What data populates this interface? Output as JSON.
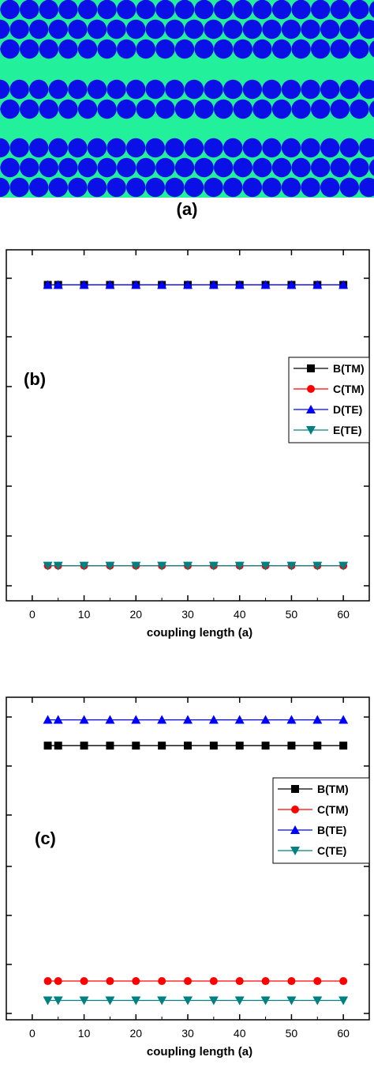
{
  "panel_a": {
    "label": "(a)",
    "colors": {
      "background": "#22f09a",
      "rods": "#0a10e6"
    }
  },
  "chart_data": [
    {
      "type": "line",
      "panel_label": "(b)",
      "xlabel": "coupling length (a)",
      "ylabel": "",
      "xlim": [
        -5,
        65
      ],
      "x_ticks": [
        0,
        10,
        20,
        30,
        40,
        50,
        60
      ],
      "ylim": [
        0,
        1
      ],
      "grid": false,
      "legend_position": "right",
      "x": [
        3,
        5,
        10,
        15,
        20,
        25,
        30,
        35,
        40,
        45,
        50,
        55,
        60
      ],
      "series": [
        {
          "name": "B(TM)",
          "marker": "square",
          "color": "#000000",
          "values": [
            0.9,
            0.9,
            0.9,
            0.9,
            0.9,
            0.9,
            0.9,
            0.9,
            0.9,
            0.9,
            0.9,
            0.9,
            0.9
          ]
        },
        {
          "name": "C(TM)",
          "marker": "circle",
          "color": "#ff0000",
          "values": [
            0.1,
            0.1,
            0.1,
            0.1,
            0.1,
            0.1,
            0.1,
            0.1,
            0.1,
            0.1,
            0.1,
            0.1,
            0.1
          ]
        },
        {
          "name": "D(TE)",
          "marker": "triangle-up",
          "color": "#0000ff",
          "values": [
            0.9,
            0.9,
            0.9,
            0.9,
            0.9,
            0.9,
            0.9,
            0.9,
            0.9,
            0.9,
            0.9,
            0.9,
            0.9
          ]
        },
        {
          "name": "E(TE)",
          "marker": "triangle-down",
          "color": "#008080",
          "values": [
            0.1,
            0.1,
            0.1,
            0.1,
            0.1,
            0.1,
            0.1,
            0.1,
            0.1,
            0.1,
            0.1,
            0.1,
            0.1
          ]
        }
      ]
    },
    {
      "type": "line",
      "panel_label": "(c)",
      "xlabel": "coupling length (a)",
      "ylabel": "",
      "xlim": [
        -5,
        65
      ],
      "x_ticks": [
        0,
        10,
        20,
        30,
        40,
        50,
        60
      ],
      "ylim": [
        0,
        1
      ],
      "grid": false,
      "legend_position": "right",
      "x": [
        3,
        5,
        10,
        15,
        20,
        25,
        30,
        35,
        40,
        45,
        50,
        55,
        60
      ],
      "series": [
        {
          "name": "B(TM)",
          "marker": "square",
          "color": "#000000",
          "values": [
            0.85,
            0.85,
            0.85,
            0.85,
            0.85,
            0.85,
            0.85,
            0.85,
            0.85,
            0.85,
            0.85,
            0.85,
            0.85
          ]
        },
        {
          "name": "C(TM)",
          "marker": "circle",
          "color": "#ff0000",
          "values": [
            0.12,
            0.12,
            0.12,
            0.12,
            0.12,
            0.12,
            0.12,
            0.12,
            0.12,
            0.12,
            0.12,
            0.12,
            0.12
          ]
        },
        {
          "name": "B(TE)",
          "marker": "triangle-up",
          "color": "#0000ff",
          "values": [
            0.93,
            0.93,
            0.93,
            0.93,
            0.93,
            0.93,
            0.93,
            0.93,
            0.93,
            0.93,
            0.93,
            0.93,
            0.93
          ]
        },
        {
          "name": "C(TE)",
          "marker": "triangle-down",
          "color": "#008080",
          "values": [
            0.06,
            0.06,
            0.06,
            0.06,
            0.06,
            0.06,
            0.06,
            0.06,
            0.06,
            0.06,
            0.06,
            0.06,
            0.06
          ]
        }
      ]
    }
  ]
}
